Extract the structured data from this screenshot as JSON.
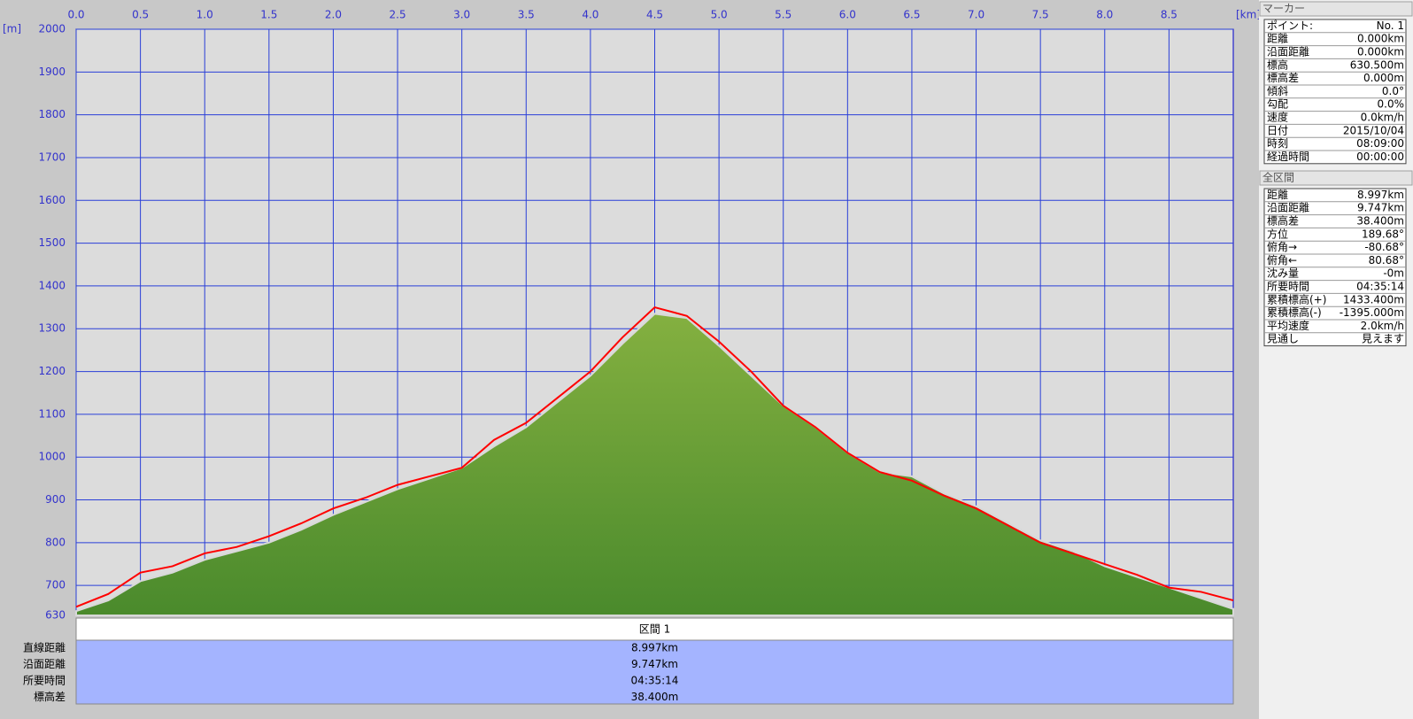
{
  "chart_data": {
    "type": "area",
    "x_unit": "[km]",
    "y_unit": "[m]",
    "x": [
      0,
      0.25,
      0.5,
      0.75,
      1,
      1.25,
      1.5,
      1.75,
      2,
      2.25,
      2.5,
      2.75,
      3,
      3.25,
      3.5,
      3.75,
      4,
      4.25,
      4.5,
      4.75,
      5,
      5.25,
      5.5,
      5.75,
      6,
      6.25,
      6.5,
      6.75,
      7,
      7.25,
      7.5,
      7.75,
      8,
      8.25,
      8.5,
      8.75,
      9
    ],
    "series": [
      {
        "type": "area",
        "color": "#5f9a34",
        "values": [
          640,
          665,
          710,
          730,
          760,
          780,
          800,
          830,
          865,
          895,
          925,
          950,
          975,
          1025,
          1070,
          1130,
          1190,
          1265,
          1335,
          1325,
          1260,
          1190,
          1120,
          1070,
          1010,
          965,
          955,
          915,
          885,
          845,
          805,
          780,
          745,
          720,
          695,
          670,
          645
        ]
      },
      {
        "type": "line",
        "color": "#ff0000",
        "values": [
          650,
          680,
          730,
          745,
          775,
          790,
          815,
          845,
          880,
          905,
          935,
          955,
          975,
          1040,
          1080,
          1140,
          1200,
          1280,
          1350,
          1330,
          1270,
          1200,
          1120,
          1070,
          1010,
          965,
          945,
          910,
          880,
          840,
          800,
          775,
          750,
          725,
          695,
          685,
          665
        ]
      }
    ],
    "xlim": [
      0,
      9
    ],
    "xticks": [
      {
        "value": 0,
        "label": "0.0"
      },
      0.5,
      {
        "value": 1,
        "label": "1.0"
      },
      1.5,
      {
        "value": 2,
        "label": "2.0"
      },
      2.5,
      {
        "value": 3,
        "label": "3.0"
      },
      3.5,
      {
        "value": 4,
        "label": "4.0"
      },
      4.5,
      {
        "value": 5,
        "label": "5.0"
      },
      5.5,
      {
        "value": 6,
        "label": "6.0"
      },
      6.5,
      {
        "value": 7,
        "label": "7.0"
      },
      7.5,
      {
        "value": 8,
        "label": "8.0"
      },
      8.5
    ],
    "ylim": [
      630,
      2000
    ],
    "yticks": [
      630,
      700,
      800,
      900,
      1000,
      1100,
      1200,
      1300,
      1400,
      1500,
      1600,
      1700,
      1800,
      1900,
      2000
    ],
    "grid": true
  },
  "section_table": {
    "header": "区間 1",
    "rows": [
      [
        "直線距離",
        "8.997km"
      ],
      [
        "沿面距離",
        "9.747km"
      ],
      [
        "所要時間",
        "04:35:14"
      ],
      [
        "標高差",
        "38.400m"
      ]
    ]
  },
  "marker": {
    "title": "マーカー",
    "rows": [
      [
        "ポイント:",
        "No. 1"
      ],
      [
        "距離",
        "0.000km"
      ],
      [
        "沿面距離",
        "0.000km"
      ],
      [
        "標高",
        "630.500m"
      ],
      [
        "標高差",
        "0.000m"
      ],
      [
        "傾斜",
        "0.0°"
      ],
      [
        "勾配",
        "0.0%"
      ],
      [
        "速度",
        "0.0km/h"
      ],
      [
        "日付",
        "2015/10/04"
      ],
      [
        "時刻",
        "08:09:00"
      ],
      [
        "経過時間",
        "00:00:00"
      ]
    ]
  },
  "all_sections": {
    "title": "全区間",
    "rows": [
      [
        "距離",
        "8.997km"
      ],
      [
        "沿面距離",
        "9.747km"
      ],
      [
        "標高差",
        "38.400m"
      ],
      [
        "方位",
        "189.68°"
      ],
      [
        "俯角→",
        "-80.68°"
      ],
      [
        "俯角←",
        "80.68°"
      ],
      [
        "沈み量",
        "-0m"
      ],
      [
        "所要時間",
        "04:35:14"
      ],
      [
        "累積標高(+)",
        "1433.400m"
      ],
      [
        "累積標高(-)",
        "-1395.000m"
      ],
      [
        "平均速度",
        "2.0km/h"
      ],
      [
        "見通し",
        "見えます"
      ]
    ]
  }
}
